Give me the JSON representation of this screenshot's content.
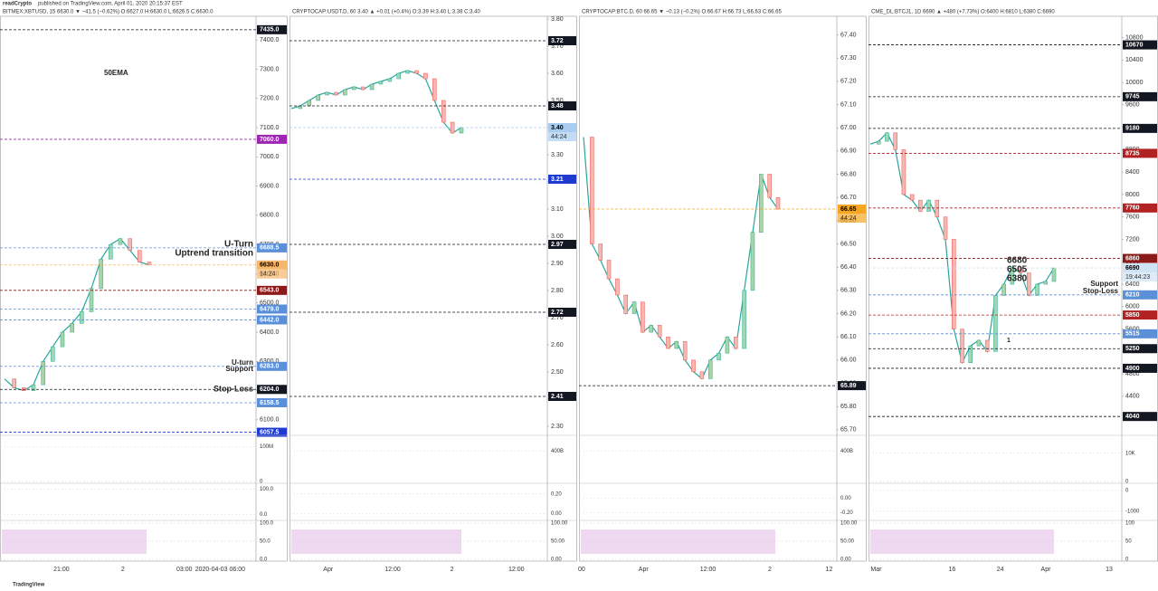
{
  "header": {
    "author": "readCrypto",
    "published": "published on TradingView.com, April 01, 2020 20:15:37 EST"
  },
  "footer": "TradingView",
  "chart_data": [
    {
      "type": "line",
      "title": "BITMEX:XBTUSD, 15  6630.0 ▼ −41.5 (−0.62%)  O:6627.0  H:6630.0  L:6626.5  C:6630.0",
      "color": "#26a69a",
      "values": [
        6240,
        6210,
        6200,
        6220,
        6300,
        6350,
        6400,
        6430,
        6470,
        6550,
        6650,
        6700,
        6720,
        6680,
        6640,
        6630
      ],
      "ylim": [
        6050,
        7481
      ],
      "yticks": [
        {
          "value": 6100,
          "label": "6100.0"
        },
        {
          "value": 6200,
          "label": "6200.0"
        },
        {
          "value": 6300,
          "label": "6300.0"
        },
        {
          "value": 6400,
          "label": "6400.0"
        },
        {
          "value": 6500,
          "label": "6500.0"
        },
        {
          "value": 6600,
          "label": "6600.0"
        },
        {
          "value": 6700,
          "label": "6700.0"
        },
        {
          "value": 6800,
          "label": "6800.0"
        },
        {
          "value": 6900,
          "label": "6900.0"
        },
        {
          "value": 7000,
          "label": "7000.0"
        },
        {
          "value": 7100,
          "label": "7100.0"
        },
        {
          "value": 7200,
          "label": "7200.0"
        },
        {
          "value": 7300,
          "label": "7300.0"
        },
        {
          "value": 7400,
          "label": "7400.0"
        }
      ],
      "price_tags": [
        {
          "value": 7435,
          "label": "7435.0",
          "color": "#131722"
        },
        {
          "value": 7060,
          "label": "7060.0",
          "color": "#9c27b0"
        },
        {
          "value": 6688.5,
          "label": "6688.5",
          "color": "#5b8fd8"
        },
        {
          "value": 6630,
          "label": "6630.0",
          "color": "#f7b76b"
        },
        {
          "value": 6543,
          "label": "6543.0",
          "color": "#8b1a1a"
        },
        {
          "value": 6479,
          "label": "6479.0",
          "color": "#5b8fd8"
        },
        {
          "value": 6442,
          "label": "6442.0",
          "color": "#5b8fd8"
        },
        {
          "value": 6283,
          "label": "6283.0",
          "color": "#5b8fd8"
        },
        {
          "value": 6204,
          "label": "6204.0",
          "color": "#131722"
        },
        {
          "value": 6158.5,
          "label": "6158.5",
          "color": "#5b8fd8"
        },
        {
          "value": 6057.5,
          "label": "6057.5",
          "color": "#1e3ad1"
        }
      ],
      "countdown": "14:24",
      "annotations": [
        "50EMA",
        "U-Turn",
        "Uptrend transition",
        "U-turn",
        "Support",
        "Stop-Loss"
      ],
      "xlabels": [
        "21:00",
        "2",
        "03:00",
        "2020-04-03  06:00"
      ],
      "volume": {
        "ylim": [
          0,
          130
        ],
        "yticks": [
          {
            "value": 100,
            "label": "100M"
          },
          0
        ]
      },
      "oscillator": {
        "ylim": [
          -20,
          120
        ],
        "yticks": [
          {
            "value": 100,
            "label": "100.0"
          },
          {
            "value": 0,
            "label": "0.0"
          }
        ]
      },
      "rsi": {
        "ylim": [
          -5,
          105
        ],
        "yticks": [
          {
            "value": 100,
            "label": "100.0"
          },
          {
            "value": 50,
            "label": "50.0"
          },
          {
            "value": 0,
            "label": "0.0"
          }
        ]
      }
    },
    {
      "type": "line",
      "title": "CRYPTOCAP:USDT.D, 60  3.40 ▲ +0.01 (+0.4%)  O:3.39  H:3.40  L:3.38  C:3.40",
      "color": "#26a69a",
      "values": [
        3.47,
        3.48,
        3.5,
        3.52,
        3.53,
        3.52,
        3.54,
        3.55,
        3.54,
        3.56,
        3.57,
        3.58,
        3.6,
        3.61,
        3.6,
        3.58,
        3.5,
        3.42,
        3.38,
        3.4
      ],
      "ylim": [
        2.27,
        3.81
      ],
      "yticks": [
        {
          "value": 2.3,
          "label": "2.30"
        },
        {
          "value": 2.4,
          "label": "2.40"
        },
        {
          "value": 2.5,
          "label": "2.50"
        },
        {
          "value": 2.6,
          "label": "2.60"
        },
        {
          "value": 2.7,
          "label": "2.70"
        },
        {
          "value": 2.8,
          "label": "2.80"
        },
        {
          "value": 2.9,
          "label": "2.90"
        },
        {
          "value": 3.0,
          "label": "3.00"
        },
        {
          "value": 3.1,
          "label": "3.10"
        },
        {
          "value": 3.2,
          "label": "3.20"
        },
        {
          "value": 3.3,
          "label": "3.30"
        },
        {
          "value": 3.4,
          "label": "3.40"
        },
        {
          "value": 3.5,
          "label": "3.50"
        },
        {
          "value": 3.6,
          "label": "3.60"
        },
        {
          "value": 3.7,
          "label": "3.70"
        },
        {
          "value": 3.8,
          "label": "3.80"
        }
      ],
      "price_tags": [
        {
          "value": 3.72,
          "label": "3.72",
          "color": "#131722"
        },
        {
          "value": 3.48,
          "label": "3.48",
          "color": "#131722"
        },
        {
          "value": 3.4,
          "label": "3.40",
          "color": "#a9cdf0"
        },
        {
          "value": 3.21,
          "label": "3.21",
          "color": "#1e3ad1"
        },
        {
          "value": 2.97,
          "label": "2.97",
          "color": "#131722"
        },
        {
          "value": 2.72,
          "label": "2.72",
          "color": "#131722"
        },
        {
          "value": 2.41,
          "label": "2.41",
          "color": "#131722"
        }
      ],
      "countdown": "44:24",
      "annotations": [],
      "xlabels": [
        "Apr",
        "12:00",
        "2",
        "12:00"
      ],
      "volume": {
        "ylim": [
          0,
          600
        ],
        "yticks": [
          {
            "value": 400,
            "label": "400B"
          }
        ]
      },
      "oscillator": {
        "ylim": [
          -0.06,
          0.3
        ],
        "yticks": [
          {
            "value": 0.2,
            "label": "0.20"
          },
          {
            "value": 0,
            "label": "0.00"
          }
        ]
      },
      "rsi": {
        "ylim": [
          -5,
          105
        ],
        "yticks": [
          {
            "value": 100,
            "label": "100.00"
          },
          {
            "value": 50,
            "label": "50.00"
          },
          {
            "value": 0,
            "label": "0.00"
          }
        ]
      }
    },
    {
      "type": "line",
      "title": "CRYPTOCAP:BTC.D, 60  66.65 ▼ −0.13 (−0.2%)  O:66.67  H:66.73  L:66.63  C:66.65",
      "color": "#26a69a",
      "values": [
        66.96,
        66.5,
        66.43,
        66.35,
        66.28,
        66.2,
        66.25,
        66.12,
        66.15,
        66.1,
        66.05,
        66.08,
        66.0,
        65.95,
        65.92,
        66.0,
        66.03,
        66.1,
        66.05,
        66.3,
        66.55,
        66.8,
        66.7,
        66.65
      ],
      "ylim": [
        65.68,
        67.48
      ],
      "yticks": [
        {
          "value": 65.7,
          "label": "65.70"
        },
        {
          "value": 65.8,
          "label": "65.80"
        },
        {
          "value": 65.9,
          "label": "65.90"
        },
        {
          "value": 66.0,
          "label": "66.00"
        },
        {
          "value": 66.1,
          "label": "66.10"
        },
        {
          "value": 66.2,
          "label": "66.20"
        },
        {
          "value": 66.3,
          "label": "66.30"
        },
        {
          "value": 66.4,
          "label": "66.40"
        },
        {
          "value": 66.5,
          "label": "66.50"
        },
        {
          "value": 66.6,
          "label": "66.60"
        },
        {
          "value": 66.7,
          "label": "66.70"
        },
        {
          "value": 66.8,
          "label": "66.80"
        },
        {
          "value": 66.9,
          "label": "66.90"
        },
        {
          "value": 67.0,
          "label": "67.00"
        },
        {
          "value": 67.1,
          "label": "67.10"
        },
        {
          "value": 67.2,
          "label": "67.20"
        },
        {
          "value": 67.3,
          "label": "67.30"
        },
        {
          "value": 67.4,
          "label": "67.40"
        }
      ],
      "price_tags": [
        {
          "value": 66.65,
          "label": "66.65",
          "color": "#f5a623"
        },
        {
          "value": 65.89,
          "label": "65.89",
          "color": "#131722"
        }
      ],
      "countdown": "44:24",
      "annotations": [],
      "xlabels": [
        "00",
        "Apr",
        "12:00",
        "2",
        "12"
      ],
      "volume": {
        "ylim": [
          0,
          600
        ],
        "yticks": [
          {
            "value": 400,
            "label": "400B"
          }
        ]
      },
      "oscillator": {
        "ylim": [
          -0.3,
          0.2
        ],
        "yticks": [
          {
            "value": 0,
            "label": "0.00"
          },
          {
            "value": -0.2,
            "label": "-0.20"
          }
        ]
      },
      "rsi": {
        "ylim": [
          -5,
          105
        ],
        "yticks": [
          {
            "value": 100,
            "label": "100.00"
          },
          {
            "value": 50,
            "label": "50.00"
          },
          {
            "value": 0,
            "label": "0.00"
          }
        ]
      }
    },
    {
      "type": "line",
      "title": "CME_DL:BTCJ1, 1D  6690 ▲ +480 (+7.73%)  O:6400  H:6810  L:6380  C:6690",
      "color": "#26a69a",
      "values": [
        8900,
        8950,
        9100,
        8800,
        8000,
        7900,
        7700,
        7900,
        7600,
        7200,
        5600,
        5000,
        5300,
        5400,
        5200,
        6200,
        6400,
        6700,
        6600,
        6200,
        6400,
        6450,
        6690
      ],
      "ylim": [
        3720,
        11180
      ],
      "yticks": [
        4400,
        4800,
        5200,
        5600,
        6000,
        6400,
        6800,
        7200,
        7600,
        8000,
        8400,
        8800,
        9200,
        9600,
        10000,
        10400,
        10800
      ],
      "price_tags": [
        {
          "value": 10670,
          "label": "10670",
          "color": "#131722"
        },
        {
          "value": 9745,
          "label": "9745",
          "color": "#131722"
        },
        {
          "value": 9180,
          "label": "9180",
          "color": "#131722"
        },
        {
          "value": 8735,
          "label": "8735",
          "color": "#b22222"
        },
        {
          "value": 7760,
          "label": "7760",
          "color": "#b22222"
        },
        {
          "value": 6860,
          "label": "6860",
          "color": "#8b1a1a"
        },
        {
          "value": 6690,
          "label": "6690",
          "color": "#cfe3f7"
        },
        {
          "value": 6210,
          "label": "6210",
          "color": "#5b8fd8"
        },
        {
          "value": 5850,
          "label": "5850",
          "color": "#b22222"
        },
        {
          "value": 5515,
          "label": "5515",
          "color": "#5b8fd8"
        },
        {
          "value": 5250,
          "label": "5250",
          "color": "#131722"
        },
        {
          "value": 4900,
          "label": "4900",
          "color": "#131722"
        },
        {
          "value": 4040,
          "label": "4040",
          "color": "#131722"
        }
      ],
      "countdown": "19:44:23",
      "annotations": [
        "6680",
        "6505",
        "6380",
        "Support",
        "Stop-Loss",
        "1"
      ],
      "xlabels": [
        "Mar",
        "16",
        "24",
        "Apr",
        "13"
      ],
      "volume": {
        "ylim": [
          0,
          16000
        ],
        "yticks": [
          {
            "value": 10000,
            "label": "10K"
          },
          0
        ]
      },
      "oscillator": {
        "ylim": [
          -1400,
          300
        ],
        "yticks": [
          0,
          -1000
        ]
      },
      "rsi": {
        "ylim": [
          -5,
          105
        ],
        "yticks": [
          100,
          50,
          0
        ]
      }
    }
  ]
}
